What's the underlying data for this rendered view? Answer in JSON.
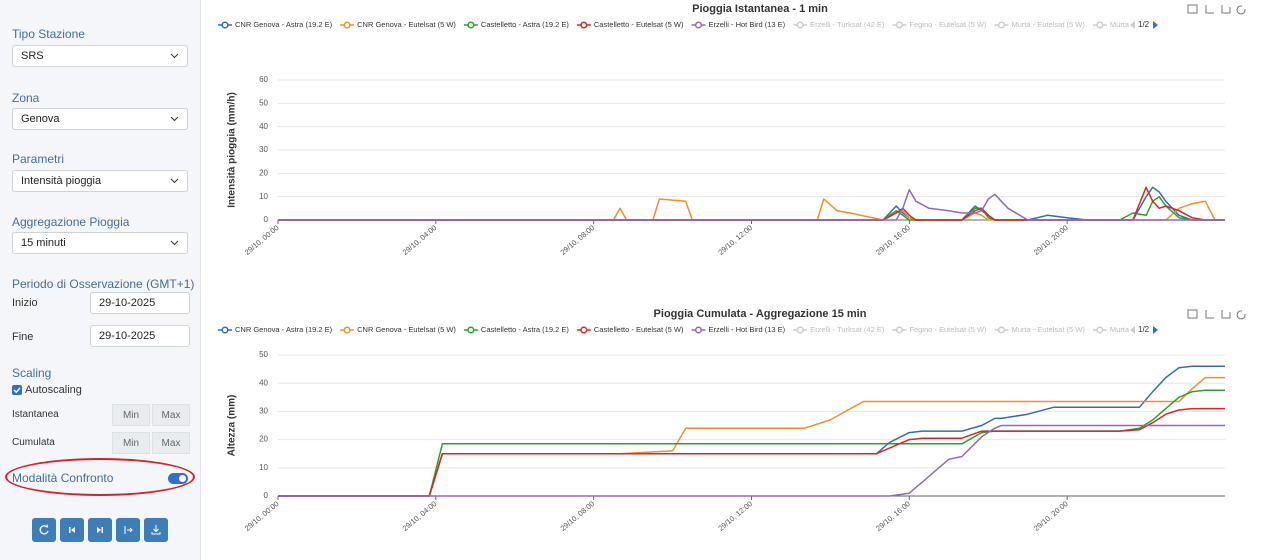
{
  "sidebar": {
    "station_type": {
      "label": "Tipo Stazione",
      "value": "SRS"
    },
    "zone": {
      "label": "Zona",
      "value": "Genova"
    },
    "parameters": {
      "label": "Parametri",
      "value": "Intensità pioggia"
    },
    "aggregation": {
      "label": "Aggregazione Pioggia",
      "value": "15 minuti"
    },
    "period": {
      "label": "Periodo di Osservazione (GMT+1)",
      "start_label": "Inizio",
      "start": "29-10-2025",
      "end_label": "Fine",
      "end": "29-10-2025"
    },
    "scaling": {
      "label": "Scaling",
      "autoscaling": "Autoscaling",
      "instant": "Istantanea",
      "cumulative": "Cumulata",
      "min": "Min",
      "max": "Max"
    },
    "compare_mode": "Modalità Confronto"
  },
  "chart_data": [
    {
      "type": "line",
      "title": "Pioggia Istantanea - 1 min",
      "y_label": "Intensità pioggia (mm/h)",
      "legend_inactive": [
        "Erzelli - Turksat (42 E)",
        "Fegino - Eutelsat (5 W)",
        "Murta - Eutelsat (5 W)",
        "Murta"
      ],
      "legend_page": "1/2",
      "xlim": [
        "29/10, 00:00",
        "30/10, 00:00"
      ],
      "xticks": [
        "29/10, 00:00",
        "29/10, 04:00",
        "29/10, 08:00",
        "29/10, 12:00",
        "29/10, 16:00",
        "29/10, 20:00"
      ],
      "ylim": [
        0,
        60
      ],
      "yticks": [
        0,
        10,
        20,
        30,
        40,
        50,
        60
      ],
      "grid": true,
      "x": [
        "29/10, 00:00",
        "29/10, 08:30",
        "29/10, 08:40",
        "29/10, 08:50",
        "29/10, 09:30",
        "29/10, 09:40",
        "29/10, 10:20",
        "29/10, 10:30",
        "29/10, 13:40",
        "29/10, 13:50",
        "29/10, 14:10",
        "29/10, 14:30",
        "29/10, 15:20",
        "29/10, 15:40",
        "29/10, 15:50",
        "29/10, 16:00",
        "29/10, 16:10",
        "29/10, 16:30",
        "29/10, 17:00",
        "29/10, 17:20",
        "29/10, 17:40",
        "29/10, 17:50",
        "29/10, 18:00",
        "29/10, 18:10",
        "29/10, 18:30",
        "29/10, 19:00",
        "29/10, 19:30",
        "29/10, 20:00",
        "29/10, 20:30",
        "29/10, 21:20",
        "29/10, 21:40",
        "29/10, 22:00",
        "29/10, 22:10",
        "29/10, 22:20",
        "29/10, 22:30",
        "29/10, 22:50",
        "29/10, 23:10",
        "29/10, 23:30",
        "29/10, 23:45",
        "30/10, 00:00"
      ],
      "series": [
        {
          "name": "CNR Genova - Astra (19.2 E)",
          "color": "#2f6fb0",
          "values": [
            0,
            0,
            0,
            0,
            0,
            0,
            0,
            0,
            0,
            0,
            0,
            0,
            0,
            6,
            3,
            1,
            0,
            0,
            0,
            0,
            6,
            4,
            2,
            0,
            0,
            0,
            2,
            1,
            0,
            0,
            0,
            10,
            14,
            12,
            8,
            2,
            0,
            0,
            0,
            0
          ]
        },
        {
          "name": "CNR Genova - Eutelsat (5 W)",
          "color": "#f28e2b",
          "values": [
            0,
            0,
            5,
            0,
            0,
            9,
            8,
            0,
            0,
            9,
            4,
            3,
            0,
            3,
            4,
            1,
            0,
            0,
            0,
            0,
            3,
            2,
            0,
            0,
            0,
            0,
            0,
            0,
            0,
            0,
            0,
            0,
            0,
            0,
            0,
            5,
            7,
            8,
            0,
            0
          ]
        },
        {
          "name": "Castelletto - Astra (19.2 E)",
          "color": "#2ca02c",
          "values": [
            0,
            0,
            0,
            0,
            0,
            0,
            0,
            0,
            0,
            0,
            0,
            0,
            0,
            4,
            2,
            0,
            0,
            0,
            0,
            0,
            5,
            5,
            1,
            0,
            0,
            0,
            0,
            0,
            0,
            0,
            3,
            2,
            8,
            10,
            6,
            1,
            0,
            0,
            0,
            0
          ]
        },
        {
          "name": "Castelletto - Eutelsat (5 W)",
          "color": "#d62728",
          "values": [
            0,
            0,
            0,
            0,
            0,
            0,
            0,
            0,
            0,
            0,
            0,
            0,
            0,
            3,
            5,
            2,
            0,
            0,
            0,
            0,
            4,
            5,
            2,
            0,
            0,
            0,
            0,
            0,
            0,
            0,
            0,
            14,
            8,
            5,
            6,
            4,
            1,
            0,
            0,
            0
          ]
        },
        {
          "name": "Erzelli - Hot Bird (13 E)",
          "color": "#9467bd",
          "values": [
            0,
            0,
            0,
            0,
            0,
            0,
            0,
            0,
            0,
            0,
            0,
            0,
            0,
            0,
            5,
            13,
            8,
            5,
            4,
            3,
            3,
            4,
            9,
            11,
            5,
            0,
            0,
            0,
            0,
            0,
            0,
            0,
            0,
            0,
            0,
            0,
            0,
            0,
            0,
            0
          ]
        }
      ]
    },
    {
      "type": "line",
      "title": "Pioggia Cumulata - Aggregazione 15 min",
      "y_label": "Altezza (mm)",
      "legend_inactive": [
        "Erzelli - Turksat (42 E)",
        "Fegino - Eutelsat (5 W)",
        "Murta - Eutelsat (5 W)",
        "Murta"
      ],
      "legend_page": "1/2",
      "xlim": [
        "29/10, 00:00",
        "30/10, 00:00"
      ],
      "xticks": [
        "29/10, 00:00",
        "29/10, 04:00",
        "29/10, 08:00",
        "29/10, 12:00",
        "29/10, 16:00",
        "29/10, 20:00"
      ],
      "ylim": [
        0,
        50
      ],
      "yticks": [
        0,
        10,
        20,
        30,
        40,
        50
      ],
      "grid": true,
      "x": [
        "29/10, 00:00",
        "29/10, 03:50",
        "29/10, 04:10",
        "29/10, 08:40",
        "29/10, 10:00",
        "29/10, 10:20",
        "29/10, 13:20",
        "29/10, 14:00",
        "29/10, 14:50",
        "29/10, 15:10",
        "29/10, 15:30",
        "29/10, 16:00",
        "29/10, 16:20",
        "29/10, 16:40",
        "29/10, 17:00",
        "29/10, 17:20",
        "29/10, 17:50",
        "29/10, 18:10",
        "29/10, 18:20",
        "29/10, 19:00",
        "29/10, 19:40",
        "29/10, 21:20",
        "29/10, 21:50",
        "29/10, 22:10",
        "29/10, 22:30",
        "29/10, 22:50",
        "29/10, 23:10",
        "29/10, 23:30",
        "30/10, 00:00"
      ],
      "series": [
        {
          "name": "CNR Genova - Astra (19.2 E)",
          "color": "#2f6fb0",
          "values": [
            0,
            0,
            15,
            15,
            15,
            15,
            15,
            15,
            15,
            15,
            19,
            22.5,
            23,
            23,
            23,
            23,
            25,
            27.5,
            27.5,
            29,
            31.5,
            31.5,
            31.5,
            37,
            42,
            45.5,
            46,
            46,
            46
          ]
        },
        {
          "name": "CNR Genova - Eutelsat (5 W)",
          "color": "#f28e2b",
          "values": [
            0,
            0,
            15,
            15,
            16,
            24,
            24,
            27,
            33.5,
            33.5,
            33.5,
            33.5,
            33.5,
            33.5,
            33.5,
            33.5,
            33.5,
            33.5,
            33.5,
            33.5,
            33.5,
            33.5,
            33.5,
            33.5,
            33.5,
            33.5,
            38,
            42,
            42
          ]
        },
        {
          "name": "Castelletto - Astra (19.2 E)",
          "color": "#2ca02c",
          "values": [
            0,
            0,
            18.5,
            18.5,
            18.5,
            18.5,
            18.5,
            18.5,
            18.5,
            18.5,
            18.5,
            18.5,
            18.5,
            18.5,
            18.5,
            18.5,
            22.5,
            23,
            23,
            23,
            23,
            23,
            24,
            27,
            31,
            35,
            37,
            37.5,
            37.5
          ]
        },
        {
          "name": "Castelletto - Eutelsat (5 W)",
          "color": "#d62728",
          "values": [
            0,
            0,
            15,
            15,
            15,
            15,
            15,
            15,
            15,
            15,
            17,
            20,
            20.5,
            20.5,
            20.5,
            20.5,
            23,
            23,
            23,
            23,
            23,
            23,
            23.5,
            26,
            29,
            30.5,
            31,
            31,
            31
          ]
        },
        {
          "name": "Erzelli - Hot Bird (13 E)",
          "color": "#9467bd",
          "values": [
            0,
            0,
            0,
            0,
            0,
            0,
            0,
            0,
            0,
            0,
            0,
            1,
            5,
            9,
            13,
            14,
            21,
            24,
            25,
            25,
            25,
            25,
            25,
            25,
            25,
            25,
            25,
            25,
            25
          ]
        }
      ]
    }
  ]
}
